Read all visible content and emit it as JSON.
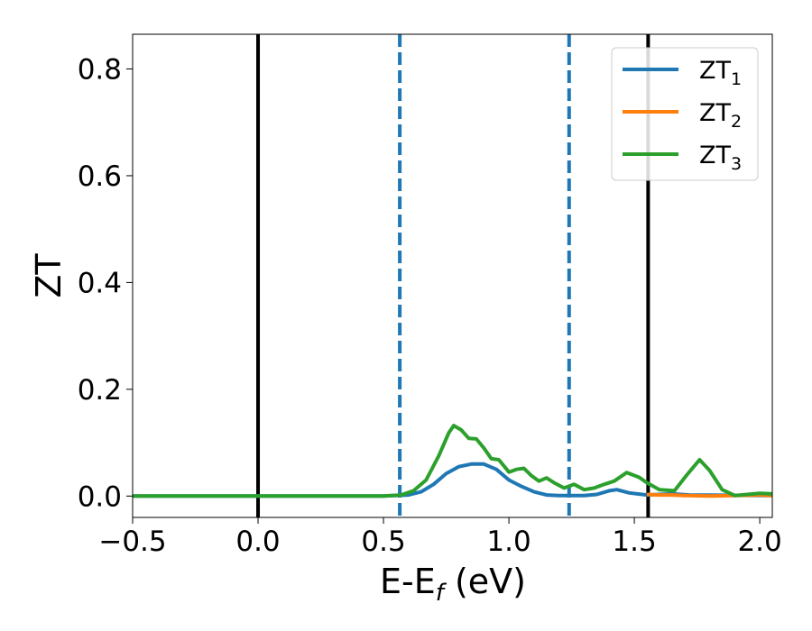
{
  "chart_data": {
    "type": "line",
    "xlabel": "E-E",
    "xlabel_sub": "f",
    "xlabel_unit": " (eV)",
    "ylabel": "ZT",
    "xlim": [
      -0.5,
      2.05
    ],
    "ylim": [
      -0.04,
      0.865
    ],
    "x_ticks": [
      -0.5,
      0.0,
      0.5,
      1.0,
      1.5,
      2.0
    ],
    "x_tick_labels": [
      "−0.5",
      "0.0",
      "0.5",
      "1.0",
      "1.5",
      "2.0"
    ],
    "y_ticks": [
      0.0,
      0.2,
      0.4,
      0.6,
      0.8
    ],
    "y_tick_labels": [
      "0.0",
      "0.2",
      "0.4",
      "0.6",
      "0.8"
    ],
    "grid": false,
    "legend_position": "top-right",
    "vertical_lines": [
      {
        "x": 0.0,
        "style": "solid",
        "color": "#000000"
      },
      {
        "x": 1.555,
        "style": "solid",
        "color": "#000000"
      },
      {
        "x": 0.565,
        "style": "dashed",
        "color": "#1f77b4"
      },
      {
        "x": 1.24,
        "style": "dashed",
        "color": "#1f77b4"
      }
    ],
    "series": [
      {
        "name": "ZT",
        "sub": "1",
        "color": "#1f77b4",
        "points": [
          [
            -0.5,
            0
          ],
          [
            0.5,
            0
          ],
          [
            0.6,
            0.002
          ],
          [
            0.65,
            0.008
          ],
          [
            0.7,
            0.022
          ],
          [
            0.75,
            0.042
          ],
          [
            0.8,
            0.055
          ],
          [
            0.85,
            0.06
          ],
          [
            0.9,
            0.06
          ],
          [
            0.95,
            0.05
          ],
          [
            1.0,
            0.03
          ],
          [
            1.05,
            0.018
          ],
          [
            1.1,
            0.008
          ],
          [
            1.15,
            0.002
          ],
          [
            1.2,
            0.001
          ],
          [
            1.3,
            0.001
          ],
          [
            1.35,
            0.003
          ],
          [
            1.4,
            0.01
          ],
          [
            1.43,
            0.012
          ],
          [
            1.48,
            0.006
          ],
          [
            1.55,
            0.002
          ],
          [
            1.65,
            0.004
          ],
          [
            1.72,
            0.002
          ],
          [
            2.05,
            0.001
          ]
        ]
      },
      {
        "name": "ZT",
        "sub": "2",
        "color": "#ff7f0e",
        "points": [
          [
            1.55,
            0.003
          ],
          [
            1.6,
            0.002
          ],
          [
            1.65,
            0.002
          ],
          [
            1.7,
            0.001
          ],
          [
            1.8,
            0
          ],
          [
            1.9,
            0.001
          ],
          [
            2.0,
            0.002
          ],
          [
            2.05,
            0.001
          ]
        ]
      },
      {
        "name": "ZT",
        "sub": "3",
        "color": "#2ca02c",
        "points": [
          [
            -0.5,
            0
          ],
          [
            0.5,
            0
          ],
          [
            0.57,
            0.002
          ],
          [
            0.62,
            0.01
          ],
          [
            0.67,
            0.03
          ],
          [
            0.72,
            0.075
          ],
          [
            0.76,
            0.118
          ],
          [
            0.78,
            0.132
          ],
          [
            0.81,
            0.124
          ],
          [
            0.84,
            0.108
          ],
          [
            0.87,
            0.107
          ],
          [
            0.9,
            0.09
          ],
          [
            0.93,
            0.07
          ],
          [
            0.96,
            0.068
          ],
          [
            1.0,
            0.045
          ],
          [
            1.03,
            0.05
          ],
          [
            1.06,
            0.052
          ],
          [
            1.09,
            0.038
          ],
          [
            1.12,
            0.028
          ],
          [
            1.15,
            0.034
          ],
          [
            1.18,
            0.025
          ],
          [
            1.22,
            0.015
          ],
          [
            1.26,
            0.022
          ],
          [
            1.3,
            0.012
          ],
          [
            1.34,
            0.015
          ],
          [
            1.38,
            0.022
          ],
          [
            1.42,
            0.028
          ],
          [
            1.47,
            0.044
          ],
          [
            1.52,
            0.035
          ],
          [
            1.55,
            0.025
          ],
          [
            1.6,
            0.012
          ],
          [
            1.66,
            0.01
          ],
          [
            1.71,
            0.04
          ],
          [
            1.76,
            0.068
          ],
          [
            1.8,
            0.048
          ],
          [
            1.85,
            0.012
          ],
          [
            1.9,
            0.001
          ],
          [
            1.95,
            0.003
          ],
          [
            2.0,
            0.005
          ],
          [
            2.05,
            0.004
          ]
        ]
      }
    ]
  }
}
